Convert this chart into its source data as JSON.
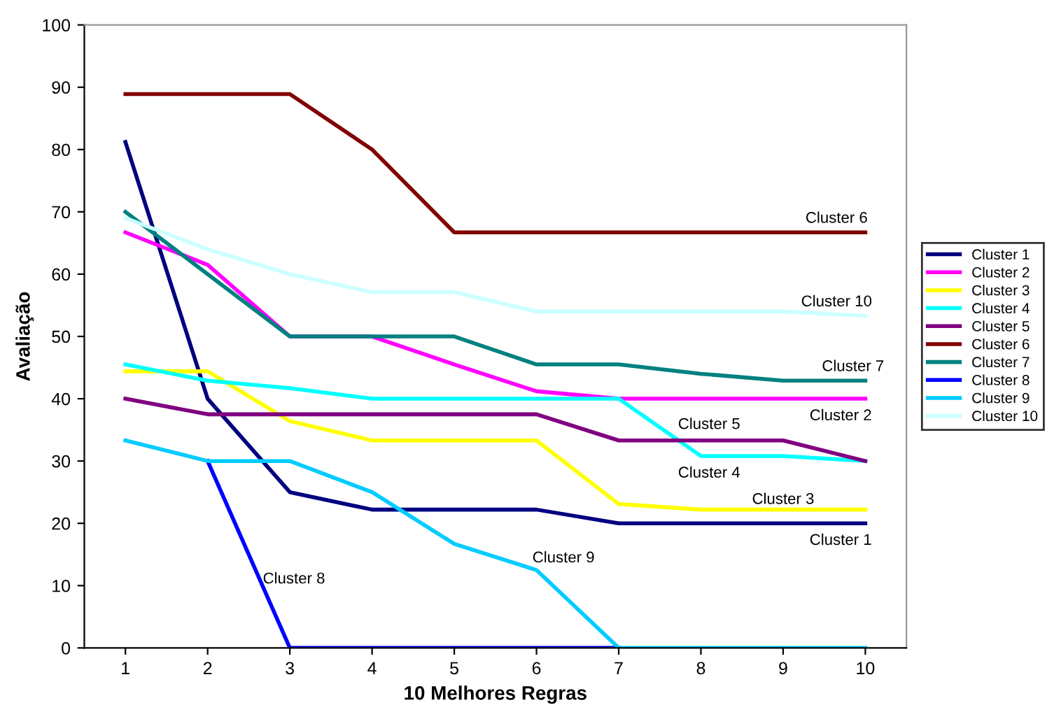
{
  "chart_data": {
    "type": "line",
    "xlabel": "10 Melhores Regras",
    "ylabel": "Avaliação",
    "categories": [
      "1",
      "2",
      "3",
      "4",
      "5",
      "6",
      "7",
      "8",
      "9",
      "10"
    ],
    "series": [
      {
        "name": "Cluster 1",
        "color": "#000080",
        "values": [
          81.2,
          40,
          25,
          22.2,
          22.2,
          22.2,
          20,
          20,
          20,
          20
        ]
      },
      {
        "name": "Cluster 2",
        "color": "#ff00ff",
        "values": [
          66.7,
          61.5,
          50,
          50,
          45.5,
          41.2,
          40,
          40,
          40,
          40
        ]
      },
      {
        "name": "Cluster 3",
        "color": "#ffff00",
        "values": [
          44.4,
          44.4,
          36.4,
          33.3,
          33.3,
          33.3,
          23.1,
          22.2,
          22.2,
          22.2
        ]
      },
      {
        "name": "Cluster 4",
        "color": "#00ffff",
        "values": [
          45.5,
          42.9,
          41.7,
          40,
          40,
          40,
          40,
          30.8,
          30.8,
          30
        ]
      },
      {
        "name": "Cluster 5",
        "color": "#800080",
        "values": [
          40,
          37.5,
          37.5,
          37.5,
          37.5,
          37.5,
          33.3,
          33.3,
          33.3,
          30
        ]
      },
      {
        "name": "Cluster 6",
        "color": "#800000",
        "values": [
          88.9,
          88.9,
          88.9,
          80,
          66.7,
          66.7,
          66.7,
          66.7,
          66.7,
          66.7
        ]
      },
      {
        "name": "Cluster 7",
        "color": "#008080",
        "values": [
          70,
          60,
          50,
          50,
          50,
          45.5,
          45.5,
          44,
          42.9,
          42.9
        ]
      },
      {
        "name": "Cluster 8",
        "color": "#0000ff",
        "values": [
          null,
          30,
          0,
          0,
          0,
          0,
          0,
          null,
          null,
          null
        ]
      },
      {
        "name": "Cluster 9",
        "color": "#00ccff",
        "values": [
          33.3,
          30,
          30,
          25,
          16.7,
          12.5,
          0,
          0,
          0,
          0
        ]
      },
      {
        "name": "Cluster 10",
        "color": "#ccffff",
        "values": [
          69,
          64,
          60,
          57.1,
          57.1,
          54,
          54,
          54,
          54,
          53.3
        ]
      }
    ],
    "annotations": [
      {
        "text": "Cluster 6",
        "x": "10",
        "y": 66.7
      },
      {
        "text": "Cluster 10",
        "x": "10",
        "y": 53.3
      },
      {
        "text": "Cluster 7",
        "x": "10",
        "y": 42.9
      },
      {
        "text": "Cluster 2",
        "x": "10",
        "y": 40
      },
      {
        "text": "Cluster 5",
        "x": "8",
        "y": 33.3
      },
      {
        "text": "Cluster 4",
        "x": "8",
        "y": 30.8
      },
      {
        "text": "Cluster 3",
        "x": "9",
        "y": 22.2
      },
      {
        "text": "Cluster 1",
        "x": "10",
        "y": 20
      },
      {
        "text": "Cluster 9",
        "x": "6",
        "y": 12.5
      },
      "Cluster 8"
    ],
    "ylim": [
      0,
      100
    ],
    "yticks": [
      0,
      10,
      20,
      30,
      40,
      50,
      60,
      70,
      80,
      90,
      100
    ],
    "grid": false,
    "legend": "right",
    "line_style": "solid",
    "marker": "none"
  }
}
